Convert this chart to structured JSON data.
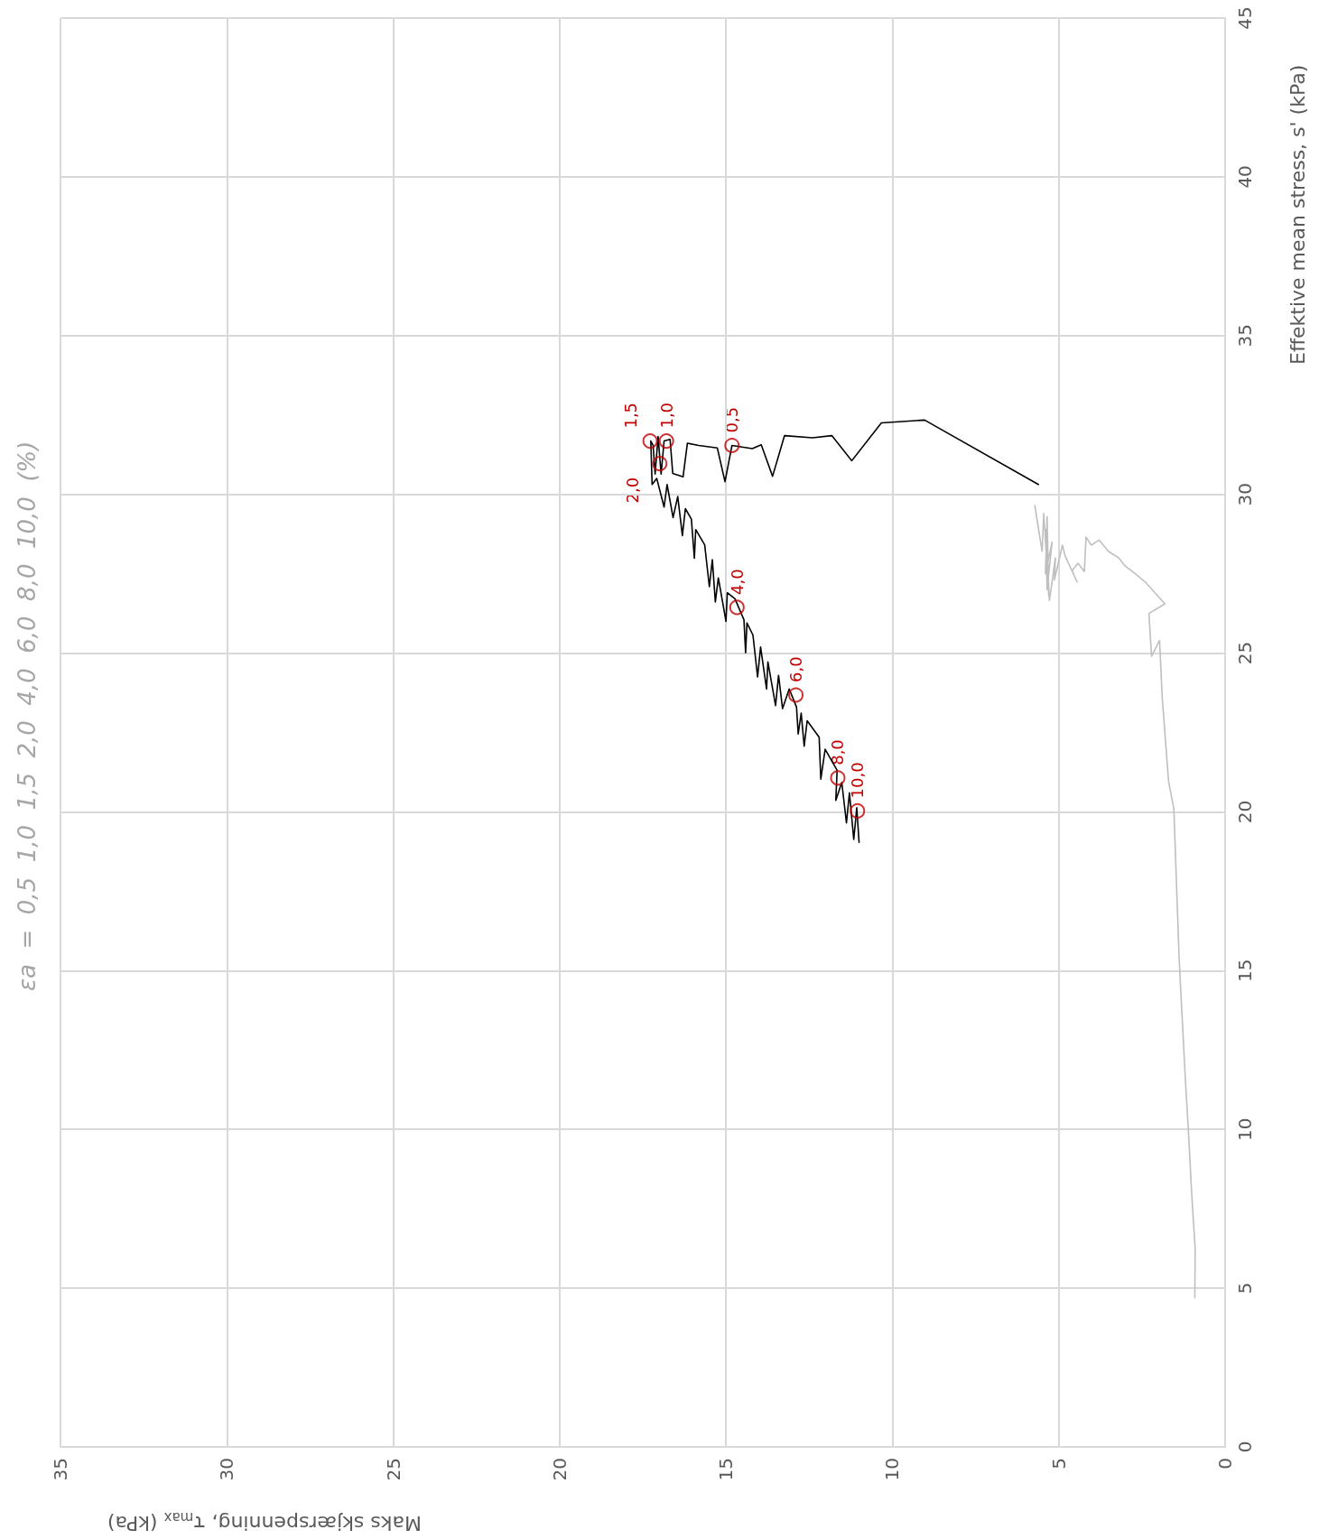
{
  "chart_data": {
    "type": "line",
    "xlabel": "Maks skjærspenning, τ$_{max}$ (kPa)",
    "ylabel": "Effektive mean stress, s' (kPa)",
    "xlim": [
      35,
      0
    ],
    "xticks": [
      35,
      30,
      25,
      20,
      15,
      10,
      5,
      0
    ],
    "ylim": [
      0,
      45
    ],
    "yticks": [
      0,
      5,
      10,
      15,
      20,
      25,
      30,
      35,
      40,
      45
    ],
    "grid": true,
    "marker": "none",
    "line_style": "solid",
    "series": [
      {
        "color": "#000000",
        "x": [
          5.61,
          9.03,
          10.33,
          11.22,
          11.82,
          12.4,
          13.24,
          13.6,
          13.94,
          14.21,
          14.82,
          15.03,
          15.26,
          15.82,
          16.16,
          16.29,
          16.6,
          16.68,
          16.86,
          16.95,
          17.04,
          17.13,
          17.19,
          17.26,
          17.22,
          17.08,
          16.86,
          16.77,
          16.59,
          16.45,
          16.31,
          16.22,
          16.04,
          15.95,
          15.91,
          15.64,
          15.5,
          15.41,
          15.32,
          15.23,
          15.0,
          14.96,
          14.73,
          14.46,
          14.41,
          14.37,
          14.19,
          14.05,
          13.96,
          13.78,
          13.74,
          13.51,
          13.42,
          13.3,
          13.1,
          12.88,
          12.83,
          12.74,
          12.65,
          12.56,
          12.2,
          12.15,
          12.02,
          11.66,
          11.7,
          11.52,
          11.38,
          11.29,
          11.16,
          11.07,
          11.0
        ],
        "values": [
          30.31,
          32.34,
          32.25,
          31.06,
          31.85,
          31.78,
          31.85,
          30.57,
          31.56,
          31.44,
          31.54,
          30.4,
          31.46,
          31.54,
          31.61,
          30.55,
          30.66,
          31.73,
          31.68,
          30.64,
          31.82,
          30.64,
          31.54,
          31.68,
          30.31,
          30.5,
          29.6,
          30.31,
          29.27,
          29.93,
          28.7,
          29.55,
          29.22,
          27.99,
          28.89,
          28.41,
          27.09,
          27.94,
          26.61,
          27.37,
          26.0,
          26.9,
          26.71,
          26.05,
          25.01,
          25.95,
          25.57,
          24.25,
          25.19,
          23.87,
          24.72,
          23.35,
          24.3,
          23.25,
          23.87,
          23.3,
          22.45,
          23.11,
          22.07,
          22.87,
          22.35,
          21.03,
          21.97,
          21.31,
          20.36,
          20.93,
          19.65,
          20.6,
          19.13,
          20.13,
          19.04
        ]
      },
      {
        "color": "#bfbfbf",
        "x": [
          5.72,
          5.5,
          5.45,
          5.3,
          5.35,
          5.4,
          5.2,
          5.35,
          5.4,
          5.28,
          5.1,
          5.13,
          4.89,
          4.81,
          4.45,
          4.6,
          4.42,
          4.23,
          4.18,
          4.02,
          3.79,
          3.5,
          3.2,
          3.0,
          2.7,
          2.4,
          1.81,
          2.29,
          2.21,
          1.97,
          1.89,
          1.77,
          1.7,
          1.54,
          1.48,
          1.38,
          1.3,
          1.19,
          1.1,
          1.0,
          0.9,
          0.91
        ],
        "values": [
          29.65,
          28.2,
          29.4,
          26.8,
          29.3,
          27.5,
          28.5,
          27.0,
          28.9,
          26.66,
          28.0,
          27.3,
          28.4,
          28.07,
          27.24,
          27.6,
          27.83,
          27.57,
          28.65,
          28.4,
          28.56,
          28.2,
          28.0,
          27.74,
          27.5,
          27.24,
          26.55,
          26.25,
          24.9,
          25.4,
          23.6,
          21.95,
          20.96,
          20.1,
          18.3,
          15.35,
          13.7,
          11.5,
          9.9,
          7.9,
          6.26,
          4.7
        ]
      }
    ],
    "annotations": [
      "εa  =  0,5  1,0  1,5  2,0  4,0  6,0  8,0  10,0  (%)",
      {
        "text": "0,5",
        "x": 14.82,
        "y": 31.54
      },
      {
        "text": "1,0",
        "x": 16.79,
        "y": 31.68
      },
      {
        "text": "1,5",
        "x": 17.28,
        "y": 31.68
      },
      {
        "text": "2,0",
        "x": 16.99,
        "y": 30.97
      },
      {
        "text": "4,0",
        "x": 14.67,
        "y": 26.44
      },
      {
        "text": "6,0",
        "x": 12.9,
        "y": 23.68
      },
      {
        "text": "8,0",
        "x": 11.64,
        "y": 21.07
      },
      {
        "text": "10,0",
        "x": 11.05,
        "y": 20.03
      }
    ]
  }
}
